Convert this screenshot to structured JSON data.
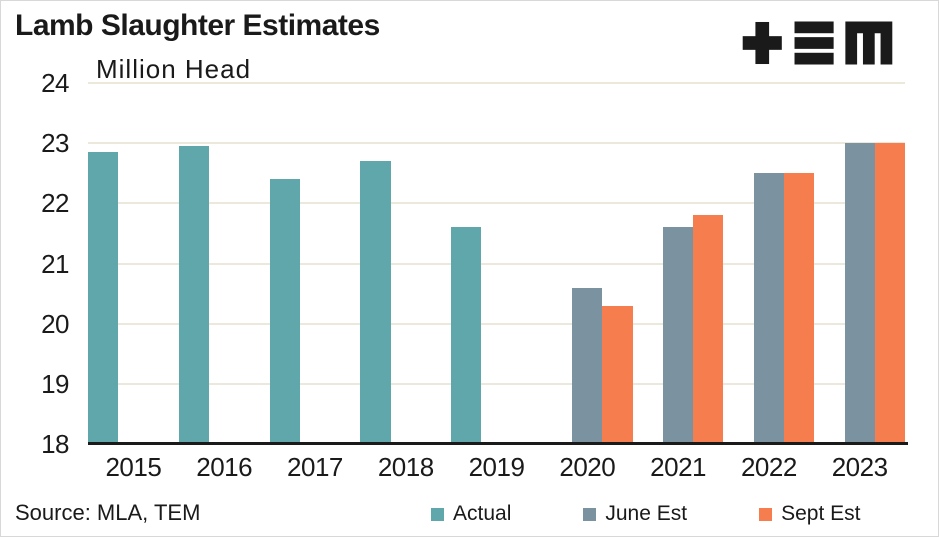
{
  "header": {
    "title": "Lamb Slaughter Estimates",
    "logo_name": "TEM"
  },
  "chart_data": {
    "type": "bar",
    "title": "Lamb Slaughter Estimates",
    "unit_label": "Million Head",
    "categories": [
      "2015",
      "2016",
      "2017",
      "2018",
      "2019",
      "2020",
      "2021",
      "2022",
      "2023"
    ],
    "series": [
      {
        "name": "Actual",
        "color": "#5FA7AB",
        "values": [
          22.85,
          22.95,
          22.4,
          22.7,
          21.6,
          null,
          null,
          null,
          null
        ]
      },
      {
        "name": "June Est",
        "color": "#7B93A0",
        "values": [
          null,
          null,
          null,
          null,
          null,
          20.6,
          21.6,
          22.5,
          23.0
        ]
      },
      {
        "name": "Sept Est",
        "color": "#F67D4D",
        "values": [
          null,
          null,
          null,
          null,
          null,
          20.3,
          21.8,
          22.5,
          23.0
        ]
      }
    ],
    "ylim": [
      18,
      24
    ],
    "yticks": [
      18,
      19,
      20,
      21,
      22,
      23,
      24
    ],
    "grid": true,
    "legend_position": "bottom-right"
  },
  "footer": {
    "source": "Source: MLA, TEM"
  },
  "colors": {
    "ink": "#1A1A1A",
    "gridline": "#ECE9DC",
    "axis": "#1A1A1A",
    "background": "#FFFFFF",
    "border": "#D8D8D8",
    "teal": "#5FA7AB",
    "slate": "#7B93A0",
    "orange": "#F67D4D"
  }
}
